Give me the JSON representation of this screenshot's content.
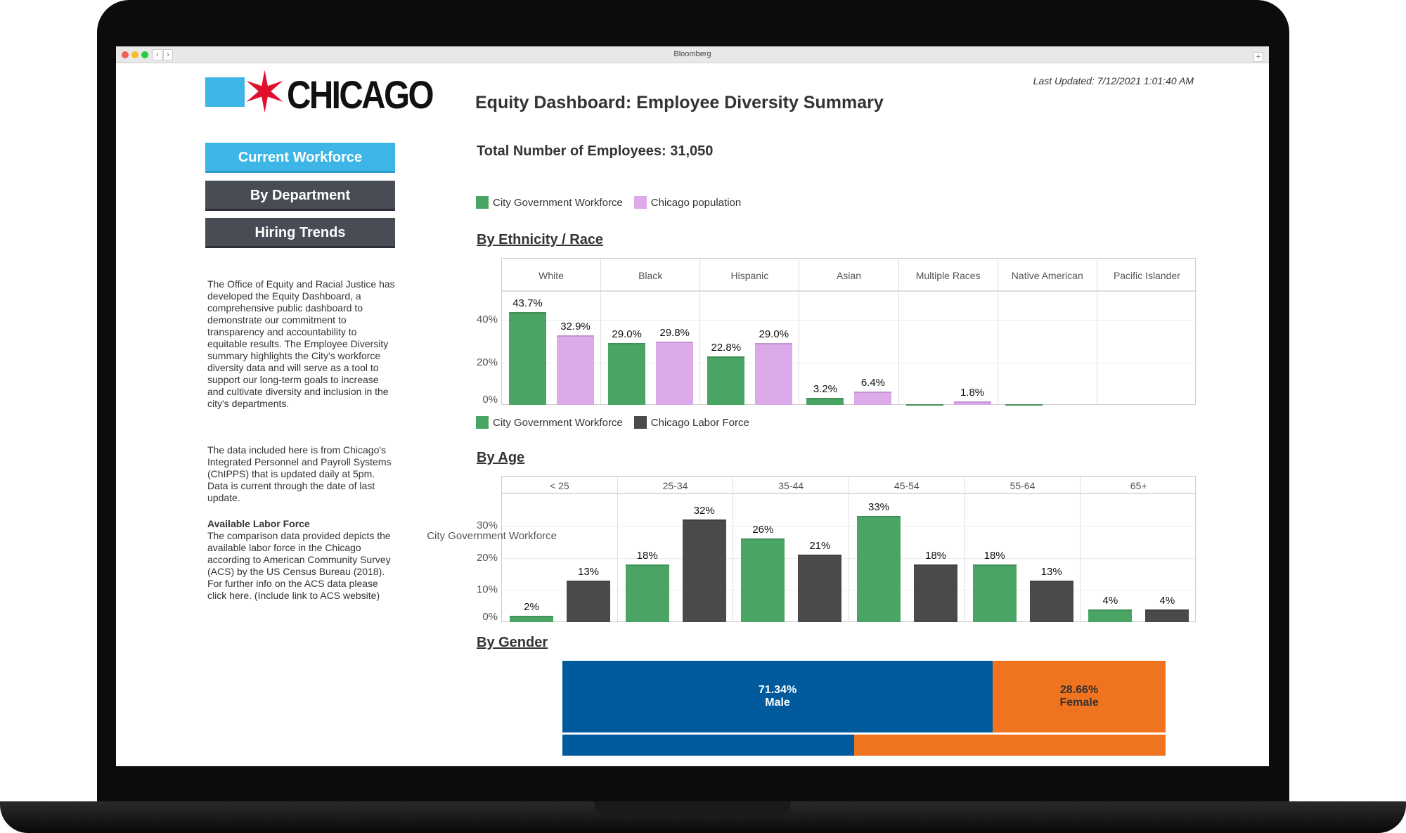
{
  "browser": {
    "title": "Bloomberg"
  },
  "logo": {
    "text": "CHICAGO"
  },
  "nav": [
    {
      "label": "Current Workforce",
      "active": true
    },
    {
      "label": "By Department",
      "active": false
    },
    {
      "label": "Hiring Trends",
      "active": false
    }
  ],
  "sidebar": {
    "intro": "The Office of Equity and Racial Justice has developed the Equity Dashboard, a comprehensive public dashboard to demonstrate our commitment to transparency and accountability to equitable results. The Employee Diversity summary highlights the City's workforce diversity data and will serve as a tool to support our long-term goals to increase and cultivate diversity and inclusion in the city's departments.",
    "data_source": "The data included here is from Chicago's Integrated Personnel and Payroll Systems (ChIPPS) that is updated daily at 5pm. Data is current through the date of last update.",
    "labor_heading": "Available Labor Force",
    "labor_text": "The comparison data provided depicts the available labor force in the Chicago according to American Community Survey (ACS) by the US Census Bureau (2018). For further info on the ACS data please click here. (Include link to ACS website)"
  },
  "header": {
    "title": "Equity Dashboard: Employee Diversity Summary",
    "last_updated": "Last Updated: 7/12/2021 1:01:40 AM",
    "total_employees": "Total Number of Employees: 31,050"
  },
  "colors": {
    "green": "#4aa564",
    "lilac": "#dcaaea",
    "dark": "#4a4a4a",
    "male": "#005a9c",
    "female": "#f07320",
    "nav_active": "#3db5e6",
    "nav": "#474c55"
  },
  "chart_data": [
    {
      "type": "bar",
      "title": "By Ethnicity / Race",
      "legend": [
        "City Government Workforce",
        "Chicago population"
      ],
      "categories": [
        "White",
        "Black",
        "Hispanic",
        "Asian",
        "Multiple Races",
        "Native American",
        "Pacific Islander"
      ],
      "series": [
        {
          "name": "City Government Workforce",
          "values": [
            43.7,
            29.0,
            22.8,
            3.2,
            0.3,
            0.2,
            0
          ],
          "labels": [
            "43.7%",
            "29.0%",
            "22.8%",
            "3.2%",
            "",
            "",
            ""
          ]
        },
        {
          "name": "Chicago population",
          "values": [
            32.9,
            29.8,
            29.0,
            6.4,
            1.8,
            0,
            0
          ],
          "labels": [
            "32.9%",
            "29.8%",
            "29.0%",
            "6.4%",
            "1.8%",
            "",
            ""
          ]
        }
      ],
      "yticks": [
        "0%",
        "20%",
        "40%"
      ],
      "ytick_values": [
        0,
        20,
        40
      ],
      "ylim": [
        0,
        52
      ],
      "grid": true
    },
    {
      "type": "bar",
      "title": "By Age",
      "legend": [
        "City Government Workforce",
        "Chicago Labor Force"
      ],
      "categories": [
        "< 25",
        "25-34",
        "35-44",
        "45-54",
        "55-64",
        "65+"
      ],
      "series": [
        {
          "name": "City Government Workforce",
          "values": [
            2,
            18,
            26,
            33,
            18,
            4
          ],
          "labels": [
            "2%",
            "18%",
            "26%",
            "33%",
            "18%",
            "4%"
          ]
        },
        {
          "name": "Chicago Labor Force",
          "values": [
            13,
            32,
            21,
            18,
            13,
            4
          ],
          "labels": [
            "13%",
            "32%",
            "21%",
            "18%",
            "13%",
            "4%"
          ]
        }
      ],
      "yticks": [
        "0%",
        "10%",
        "20%",
        "30%"
      ],
      "ytick_values": [
        0,
        10,
        20,
        30
      ],
      "ylim": [
        0,
        39
      ],
      "grid": true
    },
    {
      "type": "bar",
      "title": "By Gender",
      "stacked": true,
      "rows": [
        {
          "label": "City Government Workforce",
          "segments": [
            {
              "name": "Male",
              "value": 71.34,
              "label": "71.34%"
            },
            {
              "name": "Female",
              "value": 28.66,
              "label": "28.66%"
            }
          ]
        },
        {
          "label": "",
          "segments": [
            {
              "name": "Male",
              "value": 48.4,
              "label": ""
            },
            {
              "name": "Female",
              "value": 51.6,
              "label": ""
            }
          ]
        }
      ]
    }
  ]
}
